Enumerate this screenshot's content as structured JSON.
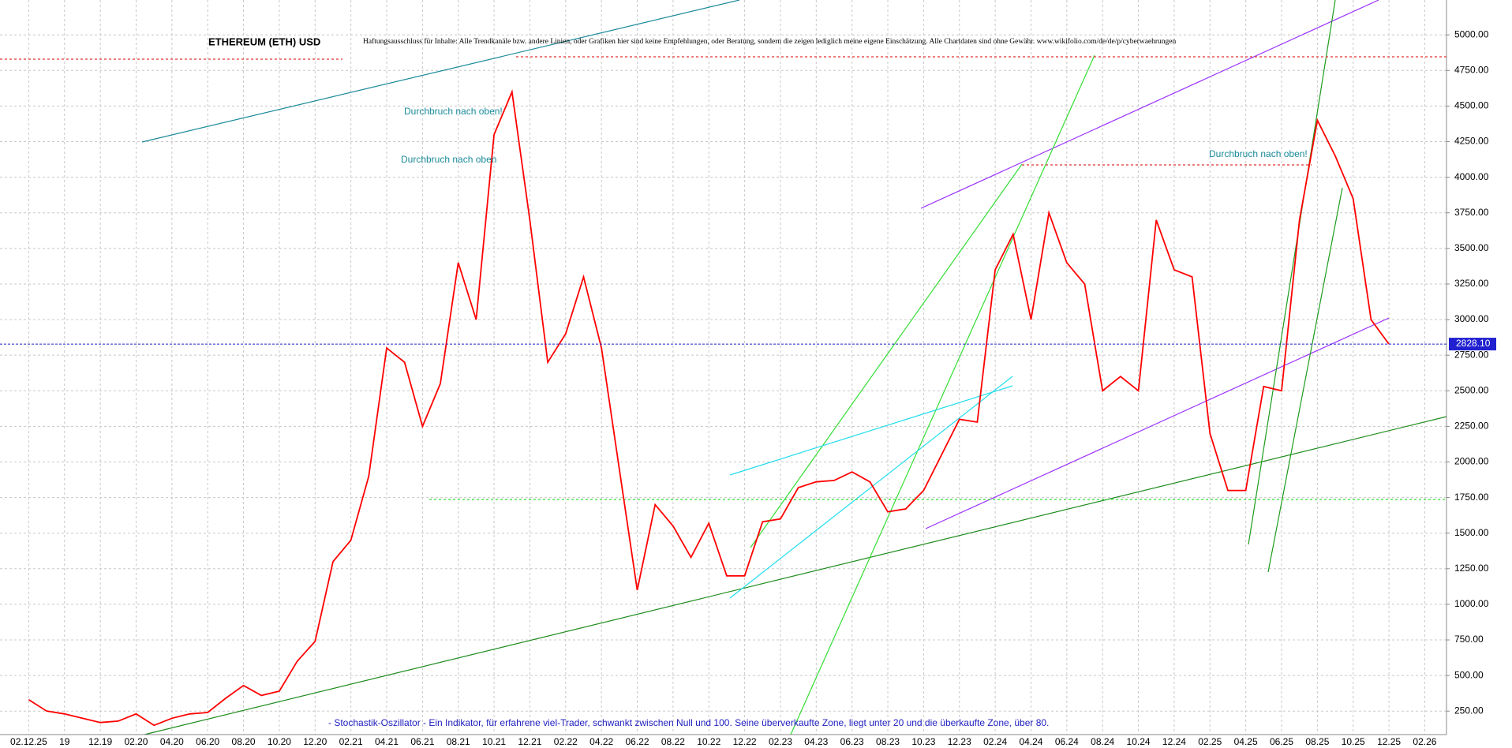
{
  "chart_data": {
    "type": "line",
    "title": "ETHEREUM (ETH) USD",
    "disclaimer": "Haftungsausschluss für Inhalte: Alle Trendkanäle bzw. andere Linien, oder Grafiken hier sind keine Empfehlungen, oder Beratung, sondern die zeigen lediglich meine eigene Einschätzung. Alle Chartdaten sind ohne Gewähr. www.wikifolio.com/de/de/p/cyberwaehrungen",
    "annotations": [
      "Durchbruch nach oben!",
      "Durchbruch nach oben",
      "Durchbruch nach oben!"
    ],
    "footnote": "- Stochastik-Oszillator - Ein Indikator, für erfahrene viel-Trader, schwankt zwischen Null und 100. Seine überverkaufte Zone, liegt unter 20 und die überkaufte Zone, über 80.",
    "categories": [
      "02.12.25",
      null,
      "19",
      null,
      "12.19",
      null,
      "02.20",
      null,
      "04.20",
      null,
      "06.20",
      null,
      "08.20",
      null,
      "10.20",
      null,
      "12.20",
      null,
      "02.21",
      null,
      "04.21",
      null,
      "06.21",
      null,
      "08.21",
      null,
      "10.21",
      null,
      "12.21",
      null,
      "02.22",
      null,
      "04.22",
      null,
      "06.22",
      null,
      "08.22",
      null,
      "10.22",
      null,
      "12.22",
      null,
      "02.23",
      null,
      "04.23",
      null,
      "06.23",
      null,
      "08.23",
      null,
      "10.23",
      null,
      "12.23",
      null,
      "02.24",
      null,
      "04.24",
      null,
      "06.24",
      null,
      "08.24",
      null,
      "10.24",
      null,
      "12.24",
      null,
      "02.25",
      null,
      "04.25",
      null,
      "06.25",
      null,
      "08.25",
      null,
      "10.25",
      null,
      "12.25",
      null,
      "02.26"
    ],
    "series": [
      {
        "name": "ETH",
        "color": "#ff0000",
        "values": [
          330,
          250,
          230,
          200,
          170,
          180,
          230,
          150,
          200,
          230,
          240,
          340,
          430,
          360,
          390,
          600,
          740,
          1300,
          1450,
          1900,
          2800,
          2700,
          2250,
          2550,
          3400,
          3000,
          4300,
          4600,
          3700,
          2700,
          2900,
          3300,
          2800,
          1950,
          1100,
          1700,
          1550,
          1330,
          1570,
          1200,
          1200,
          1580,
          1600,
          1820,
          1860,
          1870,
          1930,
          1860,
          1650,
          1670,
          1800,
          2050,
          2300,
          2280,
          3350,
          3600,
          3000,
          3750,
          3400,
          3250,
          2500,
          2600,
          2500,
          3700,
          3350,
          3300,
          2200,
          1800,
          1800,
          2530,
          2500,
          3700,
          4400,
          4150,
          3850,
          3000,
          2828.1,
          null,
          null
        ]
      }
    ],
    "last_price": {
      "value": 2828.1,
      "label": "2828.10"
    },
    "ylim": [
      85,
      5245
    ],
    "yticks": [
      {
        "value": 250,
        "label": "250.00"
      },
      {
        "value": 500,
        "label": "500.00"
      },
      {
        "value": 750,
        "label": "750.00"
      },
      {
        "value": 1000,
        "label": "1000.00"
      },
      {
        "value": 1250,
        "label": "1250.00"
      },
      {
        "value": 1500,
        "label": "1500.00"
      },
      {
        "value": 1750,
        "label": "1750.00"
      },
      {
        "value": 2000,
        "label": "2000.00"
      },
      {
        "value": 2250,
        "label": "2250.00"
      },
      {
        "value": 2500,
        "label": "2500.00"
      },
      {
        "value": 2750,
        "label": "2750.00"
      },
      {
        "value": 3000,
        "label": "3000.00"
      },
      {
        "value": 3250,
        "label": "3250.00"
      },
      {
        "value": 3500,
        "label": "3500.00"
      },
      {
        "value": 3750,
        "label": "3750.00"
      },
      {
        "value": 4000,
        "label": "4000.00"
      },
      {
        "value": 4250,
        "label": "4250.00"
      },
      {
        "value": 4500,
        "label": "4500.00"
      },
      {
        "value": 4750,
        "label": "4750.00"
      },
      {
        "value": 5000,
        "label": "5000.00"
      }
    ],
    "grid": true
  }
}
